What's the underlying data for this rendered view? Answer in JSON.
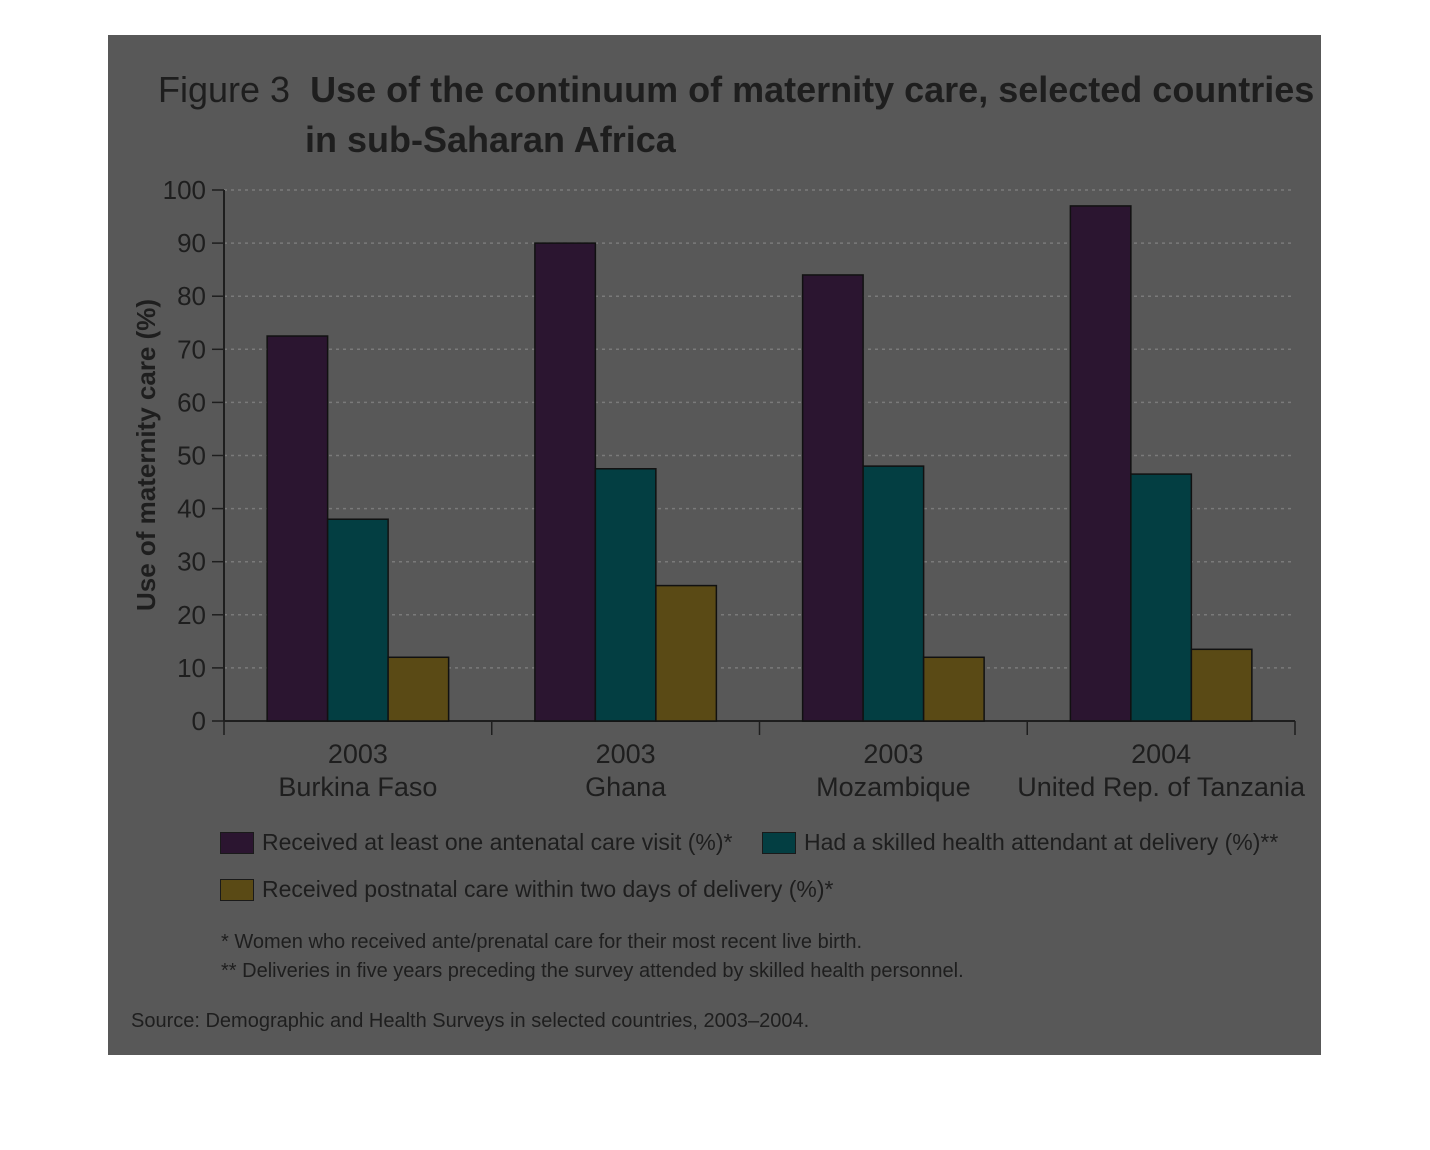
{
  "figure_label": "Figure 3",
  "title_line1": "Use of the continuum of maternity care, selected countries",
  "title_line2": "in sub-Saharan Africa",
  "chart_data": {
    "type": "bar",
    "title": "Use of the continuum of maternity care, selected countries in sub-Saharan Africa",
    "ylabel": "Use of maternity care (%)",
    "xlabel": "",
    "ylim": [
      0,
      100
    ],
    "yticks": [
      0,
      10,
      20,
      30,
      40,
      50,
      60,
      70,
      80,
      90,
      100
    ],
    "grid": true,
    "categories": [
      {
        "year": "2003",
        "country": "Burkina Faso"
      },
      {
        "year": "2003",
        "country": "Ghana"
      },
      {
        "year": "2003",
        "country": "Mozambique"
      },
      {
        "year": "2004",
        "country": "United Rep. of Tanzania"
      }
    ],
    "series": [
      {
        "name": "Received at least one antenatal care visit (%)*",
        "color": "#2b1530",
        "values": [
          72.5,
          90,
          84,
          97
        ]
      },
      {
        "name": "Had a skilled health attendant at delivery (%)**",
        "color": "#033e42",
        "values": [
          38,
          47.5,
          48,
          46.5
        ]
      },
      {
        "name": "Received postnatal care within two days of delivery (%)*",
        "color": "#5a4a15",
        "values": [
          12,
          25.5,
          12,
          13.5
        ]
      }
    ],
    "legend_position": "bottom"
  },
  "notes": [
    "* Women who received ante/prenatal care for their most recent live birth.",
    "** Deliveries in five years preceding the survey attended by skilled health personnel."
  ],
  "source": "Source: Demographic and Health Surveys in selected countries, 2003–2004."
}
